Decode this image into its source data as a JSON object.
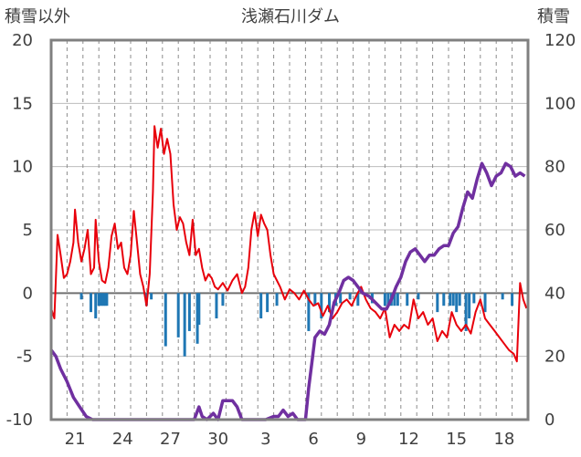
{
  "chart_data": {
    "type": "line",
    "title": "浅瀬石川ダム",
    "ylabel_left": "積雪以外",
    "ylabel_right": "積雪",
    "ylim_left": [
      -10,
      20
    ],
    "ylim_right": [
      0,
      120
    ],
    "yticks_left": [
      "20",
      "15",
      "10",
      "5",
      "0",
      "-5",
      "-10"
    ],
    "yticks_right": [
      "120",
      "100",
      "80",
      "60",
      "40",
      "20",
      "0"
    ],
    "xlim_days": [
      0,
      30
    ],
    "x_labels": [
      {
        "day": 1.5,
        "label": "21"
      },
      {
        "day": 4.5,
        "label": "24"
      },
      {
        "day": 7.5,
        "label": "27"
      },
      {
        "day": 10.5,
        "label": "30"
      },
      {
        "day": 13.5,
        "label": "3"
      },
      {
        "day": 16.5,
        "label": "6"
      },
      {
        "day": 19.5,
        "label": "9"
      },
      {
        "day": 22.5,
        "label": "12"
      },
      {
        "day": 25.5,
        "label": "15"
      },
      {
        "day": 28.5,
        "label": "18"
      }
    ],
    "series": [
      {
        "axis": "left",
        "style": "line",
        "color": "#e8000b",
        "points": [
          [
            0.0,
            -1.2
          ],
          [
            0.2,
            -2.0
          ],
          [
            0.4,
            4.6
          ],
          [
            0.6,
            3.0
          ],
          [
            0.8,
            1.2
          ],
          [
            1.0,
            1.5
          ],
          [
            1.2,
            2.5
          ],
          [
            1.4,
            4.0
          ],
          [
            1.5,
            6.6
          ],
          [
            1.7,
            4.0
          ],
          [
            1.9,
            2.5
          ],
          [
            2.1,
            3.5
          ],
          [
            2.3,
            5.0
          ],
          [
            2.5,
            1.5
          ],
          [
            2.7,
            2.0
          ],
          [
            2.8,
            5.8
          ],
          [
            3.0,
            2.5
          ],
          [
            3.2,
            1.0
          ],
          [
            3.4,
            0.8
          ],
          [
            3.6,
            2.0
          ],
          [
            3.8,
            4.5
          ],
          [
            4.0,
            5.5
          ],
          [
            4.2,
            3.5
          ],
          [
            4.4,
            4.0
          ],
          [
            4.6,
            2.0
          ],
          [
            4.8,
            1.5
          ],
          [
            5.0,
            3.0
          ],
          [
            5.2,
            6.5
          ],
          [
            5.4,
            4.0
          ],
          [
            5.6,
            1.5
          ],
          [
            5.8,
            0.5
          ],
          [
            6.0,
            -1.0
          ],
          [
            6.2,
            1.5
          ],
          [
            6.4,
            8.0
          ],
          [
            6.5,
            13.2
          ],
          [
            6.7,
            11.5
          ],
          [
            6.9,
            13.0
          ],
          [
            7.1,
            11.0
          ],
          [
            7.3,
            12.2
          ],
          [
            7.5,
            11.0
          ],
          [
            7.7,
            7.0
          ],
          [
            7.9,
            5.0
          ],
          [
            8.1,
            6.0
          ],
          [
            8.3,
            5.5
          ],
          [
            8.5,
            4.0
          ],
          [
            8.7,
            3.0
          ],
          [
            8.9,
            5.8
          ],
          [
            9.1,
            3.0
          ],
          [
            9.3,
            3.5
          ],
          [
            9.5,
            2.0
          ],
          [
            9.7,
            1.0
          ],
          [
            9.9,
            1.5
          ],
          [
            10.1,
            1.2
          ],
          [
            10.3,
            0.5
          ],
          [
            10.5,
            0.3
          ],
          [
            10.8,
            0.8
          ],
          [
            11.1,
            0.2
          ],
          [
            11.4,
            1.0
          ],
          [
            11.7,
            1.5
          ],
          [
            12.0,
            0.0
          ],
          [
            12.2,
            0.5
          ],
          [
            12.4,
            2.0
          ],
          [
            12.6,
            5.0
          ],
          [
            12.8,
            6.4
          ],
          [
            13.0,
            4.5
          ],
          [
            13.2,
            6.2
          ],
          [
            13.4,
            5.5
          ],
          [
            13.6,
            5.0
          ],
          [
            13.8,
            3.0
          ],
          [
            14.0,
            1.5
          ],
          [
            14.2,
            1.0
          ],
          [
            14.4,
            0.5
          ],
          [
            14.7,
            -0.5
          ],
          [
            15.0,
            0.3
          ],
          [
            15.3,
            0.0
          ],
          [
            15.6,
            -0.5
          ],
          [
            15.9,
            0.2
          ],
          [
            16.2,
            -0.5
          ],
          [
            16.5,
            -1.0
          ],
          [
            16.8,
            -0.8
          ],
          [
            17.1,
            -1.8
          ],
          [
            17.4,
            -1.0
          ],
          [
            17.7,
            -2.0
          ],
          [
            18.0,
            -1.5
          ],
          [
            18.3,
            -0.8
          ],
          [
            18.6,
            -0.5
          ],
          [
            18.9,
            -1.0
          ],
          [
            19.2,
            -0.2
          ],
          [
            19.5,
            0.5
          ],
          [
            19.8,
            -0.5
          ],
          [
            20.1,
            -1.2
          ],
          [
            20.4,
            -1.5
          ],
          [
            20.7,
            -2.0
          ],
          [
            21.0,
            -1.2
          ],
          [
            21.3,
            -3.5
          ],
          [
            21.6,
            -2.5
          ],
          [
            21.9,
            -3.0
          ],
          [
            22.2,
            -2.5
          ],
          [
            22.5,
            -2.8
          ],
          [
            22.8,
            -0.5
          ],
          [
            23.1,
            -2.0
          ],
          [
            23.4,
            -1.5
          ],
          [
            23.7,
            -2.5
          ],
          [
            24.0,
            -2.0
          ],
          [
            24.3,
            -3.8
          ],
          [
            24.6,
            -3.0
          ],
          [
            24.9,
            -3.5
          ],
          [
            25.2,
            -1.5
          ],
          [
            25.5,
            -2.5
          ],
          [
            25.8,
            -3.0
          ],
          [
            26.1,
            -2.5
          ],
          [
            26.4,
            -3.2
          ],
          [
            26.7,
            -1.5
          ],
          [
            27.0,
            -0.5
          ],
          [
            27.3,
            -2.0
          ],
          [
            27.6,
            -2.5
          ],
          [
            27.9,
            -3.0
          ],
          [
            28.2,
            -3.5
          ],
          [
            28.5,
            -4.0
          ],
          [
            28.8,
            -4.5
          ],
          [
            29.1,
            -4.8
          ],
          [
            29.3,
            -5.4
          ],
          [
            29.5,
            0.8
          ],
          [
            29.7,
            -0.5
          ],
          [
            29.9,
            -1.2
          ]
        ]
      },
      {
        "axis": "left",
        "style": "bar",
        "color": "#1f77b4",
        "values": [
          [
            3.0,
            -1.0
          ],
          [
            3.1,
            -1.0
          ],
          [
            3.2,
            -1.0
          ],
          [
            3.3,
            -1.0
          ],
          [
            3.4,
            -1.0
          ],
          [
            3.5,
            -1.0
          ],
          [
            1.9,
            -0.5
          ],
          [
            2.5,
            -1.5
          ],
          [
            2.8,
            -2.0
          ],
          [
            6.0,
            -1.0
          ],
          [
            6.3,
            -0.5
          ],
          [
            7.2,
            -4.2
          ],
          [
            8.0,
            -3.5
          ],
          [
            8.4,
            -5.0
          ],
          [
            8.7,
            -3.0
          ],
          [
            9.2,
            -4.0
          ],
          [
            9.3,
            -2.5
          ],
          [
            10.4,
            -2.0
          ],
          [
            10.8,
            -1.0
          ],
          [
            13.2,
            -2.0
          ],
          [
            13.6,
            -1.5
          ],
          [
            14.2,
            -1.0
          ],
          [
            16.2,
            -3.0
          ],
          [
            16.6,
            -1.0
          ],
          [
            17.0,
            -2.0
          ],
          [
            17.5,
            -1.5
          ],
          [
            17.9,
            -1.0
          ],
          [
            18.2,
            -0.8
          ],
          [
            18.8,
            -0.5
          ],
          [
            19.3,
            -1.0
          ],
          [
            20.2,
            -0.8
          ],
          [
            21.0,
            -1.0
          ],
          [
            21.2,
            -1.0
          ],
          [
            21.4,
            -1.0
          ],
          [
            21.6,
            -1.0
          ],
          [
            21.8,
            -1.0
          ],
          [
            22.4,
            -1.0
          ],
          [
            23.1,
            -0.5
          ],
          [
            24.3,
            -1.5
          ],
          [
            24.7,
            -1.0
          ],
          [
            25.1,
            -1.0
          ],
          [
            25.3,
            -1.0
          ],
          [
            25.5,
            -1.5
          ],
          [
            25.7,
            -1.0
          ],
          [
            26.1,
            -3.0
          ],
          [
            26.3,
            -2.0
          ],
          [
            26.6,
            -0.8
          ],
          [
            27.3,
            -1.5
          ],
          [
            28.4,
            -0.5
          ],
          [
            29.0,
            -1.0
          ]
        ]
      },
      {
        "axis": "right",
        "style": "line",
        "color": "#7030a0",
        "points": [
          [
            0.0,
            22
          ],
          [
            0.3,
            20
          ],
          [
            0.6,
            16
          ],
          [
            1.0,
            12
          ],
          [
            1.4,
            7
          ],
          [
            1.8,
            4
          ],
          [
            2.2,
            1
          ],
          [
            2.6,
            0
          ],
          [
            3.0,
            0
          ],
          [
            4.0,
            0
          ],
          [
            5.0,
            0
          ],
          [
            6.0,
            0
          ],
          [
            7.0,
            0
          ],
          [
            8.0,
            0
          ],
          [
            9.0,
            0
          ],
          [
            9.3,
            4
          ],
          [
            9.5,
            1
          ],
          [
            9.8,
            0
          ],
          [
            10.2,
            2
          ],
          [
            10.5,
            0
          ],
          [
            10.8,
            6
          ],
          [
            11.1,
            6
          ],
          [
            11.4,
            6
          ],
          [
            11.7,
            4
          ],
          [
            12.0,
            0
          ],
          [
            12.5,
            0
          ],
          [
            13.0,
            0
          ],
          [
            13.5,
            0
          ],
          [
            14.0,
            1
          ],
          [
            14.3,
            1
          ],
          [
            14.6,
            3
          ],
          [
            14.9,
            1
          ],
          [
            15.2,
            2
          ],
          [
            15.5,
            0
          ],
          [
            15.8,
            0
          ],
          [
            16.0,
            0
          ],
          [
            16.2,
            10
          ],
          [
            16.4,
            18
          ],
          [
            16.6,
            26
          ],
          [
            16.9,
            28
          ],
          [
            17.2,
            27
          ],
          [
            17.5,
            30
          ],
          [
            17.8,
            37
          ],
          [
            18.1,
            40
          ],
          [
            18.4,
            44
          ],
          [
            18.7,
            45
          ],
          [
            19.0,
            44
          ],
          [
            19.3,
            42
          ],
          [
            19.6,
            40
          ],
          [
            20.0,
            39
          ],
          [
            20.4,
            37
          ],
          [
            20.8,
            35
          ],
          [
            21.1,
            35
          ],
          [
            21.4,
            38
          ],
          [
            21.7,
            42
          ],
          [
            22.0,
            45
          ],
          [
            22.3,
            50
          ],
          [
            22.6,
            53
          ],
          [
            22.9,
            54
          ],
          [
            23.2,
            52
          ],
          [
            23.5,
            50
          ],
          [
            23.8,
            52
          ],
          [
            24.1,
            52
          ],
          [
            24.4,
            54
          ],
          [
            24.7,
            55
          ],
          [
            25.0,
            55
          ],
          [
            25.3,
            59
          ],
          [
            25.6,
            61
          ],
          [
            25.9,
            67
          ],
          [
            26.2,
            72
          ],
          [
            26.5,
            70
          ],
          [
            26.8,
            76
          ],
          [
            27.1,
            81
          ],
          [
            27.4,
            78
          ],
          [
            27.7,
            74
          ],
          [
            28.0,
            77
          ],
          [
            28.3,
            78
          ],
          [
            28.6,
            81
          ],
          [
            28.9,
            80
          ],
          [
            29.2,
            77
          ],
          [
            29.5,
            78
          ],
          [
            29.8,
            77
          ]
        ]
      }
    ]
  }
}
